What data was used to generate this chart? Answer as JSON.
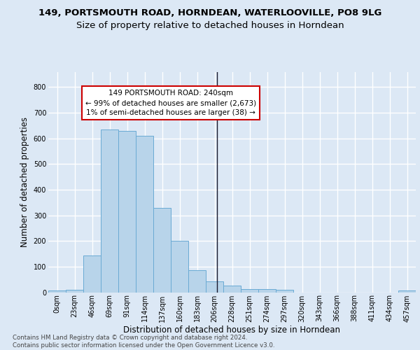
{
  "title1": "149, PORTSMOUTH ROAD, HORNDEAN, WATERLOOVILLE, PO8 9LG",
  "title2": "Size of property relative to detached houses in Horndean",
  "xlabel": "Distribution of detached houses by size in Horndean",
  "ylabel": "Number of detached properties",
  "footer": "Contains HM Land Registry data © Crown copyright and database right 2024.\nContains public sector information licensed under the Open Government Licence v3.0.",
  "bin_labels": [
    "0sqm",
    "23sqm",
    "46sqm",
    "69sqm",
    "91sqm",
    "114sqm",
    "137sqm",
    "160sqm",
    "183sqm",
    "206sqm",
    "228sqm",
    "251sqm",
    "274sqm",
    "297sqm",
    "320sqm",
    "343sqm",
    "366sqm",
    "388sqm",
    "411sqm",
    "434sqm",
    "457sqm"
  ],
  "bar_values": [
    7,
    10,
    143,
    636,
    630,
    609,
    330,
    200,
    85,
    41,
    26,
    12,
    12,
    9,
    0,
    0,
    0,
    0,
    0,
    0,
    7
  ],
  "bar_color": "#b8d4ea",
  "bar_edge_color": "#6aaad4",
  "property_line_bin_index": 9.65,
  "annotation_text": "149 PORTSMOUTH ROAD: 240sqm\n← 99% of detached houses are smaller (2,673)\n1% of semi-detached houses are larger (38) →",
  "annotation_box_color": "#ffffff",
  "annotation_border_color": "#cc0000",
  "ylim": [
    0,
    860
  ],
  "yticks": [
    0,
    100,
    200,
    300,
    400,
    500,
    600,
    700,
    800
  ],
  "background_color": "#dce8f5",
  "axes_background": "#dce8f5",
  "grid_color": "#ffffff",
  "title1_fontsize": 9.5,
  "title2_fontsize": 9.5,
  "label_fontsize": 8.5,
  "tick_fontsize": 7,
  "footer_fontsize": 6.2
}
